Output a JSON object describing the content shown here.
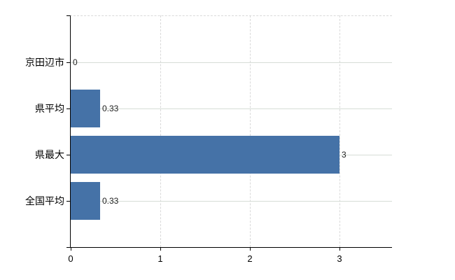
{
  "chart_data": {
    "type": "bar",
    "orientation": "horizontal",
    "title": "",
    "xlabel": "",
    "ylabel": "",
    "categories": [
      "京田辺市",
      "県平均",
      "県最大",
      "全国平均"
    ],
    "values": [
      0,
      0.33,
      3,
      0.33
    ],
    "data_labels": [
      "0",
      "0.33",
      "3",
      "0.33"
    ],
    "x_ticks": [
      0,
      1,
      2,
      3
    ],
    "x_tick_labels": [
      "0",
      "1",
      "2",
      "3"
    ],
    "xlim": [
      0,
      3.6
    ],
    "legend": "none",
    "grid": {
      "horizontal_lines": "solid, one per category",
      "vertical_lines": "dashed, at ticks 1-3",
      "top_border": "dashed"
    },
    "colors": {
      "background": "#ffffff",
      "bar": "#4572a7",
      "axis": "#000000",
      "gridline_horizontal": "#d6ddd6",
      "gridline_vertical": "#d9d9d9",
      "category_label_text": "#000000",
      "tick_label_text": "#000000",
      "data_label_text": "#222222"
    }
  }
}
